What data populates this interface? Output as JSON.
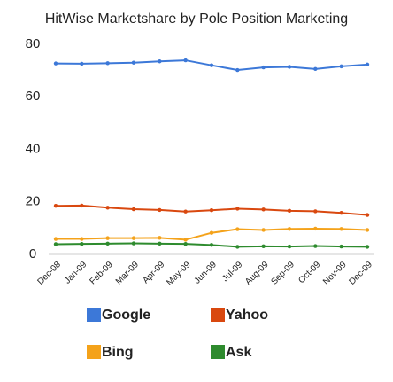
{
  "chart_data": {
    "type": "line",
    "title": "HitWise Marketshare by Pole Position Marketing",
    "categories": [
      "Dec-08",
      "Jan-09",
      "Feb-09",
      "Mar-09",
      "Apr-09",
      "May-09",
      "Jun-09",
      "Jul-09",
      "Aug-09",
      "Sep-09",
      "Oct-09",
      "Nov-09",
      "Dec-09"
    ],
    "series": [
      {
        "name": "Google",
        "color": "#3c78d8",
        "values": [
          72.7,
          72.6,
          72.8,
          73.0,
          73.5,
          73.9,
          72.0,
          70.2,
          71.2,
          71.4,
          70.6,
          71.6,
          72.3
        ]
      },
      {
        "name": "Yahoo",
        "color": "#d9480f",
        "values": [
          18.5,
          18.6,
          17.8,
          17.2,
          16.9,
          16.3,
          16.8,
          17.4,
          17.1,
          16.6,
          16.4,
          15.8,
          15.0
        ]
      },
      {
        "name": "Bing",
        "color": "#f4a21a",
        "values": [
          5.9,
          5.9,
          6.2,
          6.2,
          6.3,
          5.6,
          8.2,
          9.6,
          9.3,
          9.7,
          9.8,
          9.7,
          9.3
        ]
      },
      {
        "name": "Ask",
        "color": "#2e8b2e",
        "values": [
          3.9,
          4.0,
          4.1,
          4.2,
          4.1,
          4.0,
          3.6,
          2.9,
          3.1,
          3.0,
          3.2,
          3.0,
          2.9
        ]
      }
    ],
    "ylim": [
      0,
      80
    ],
    "yticks": [
      0,
      20,
      40,
      60,
      80
    ]
  }
}
